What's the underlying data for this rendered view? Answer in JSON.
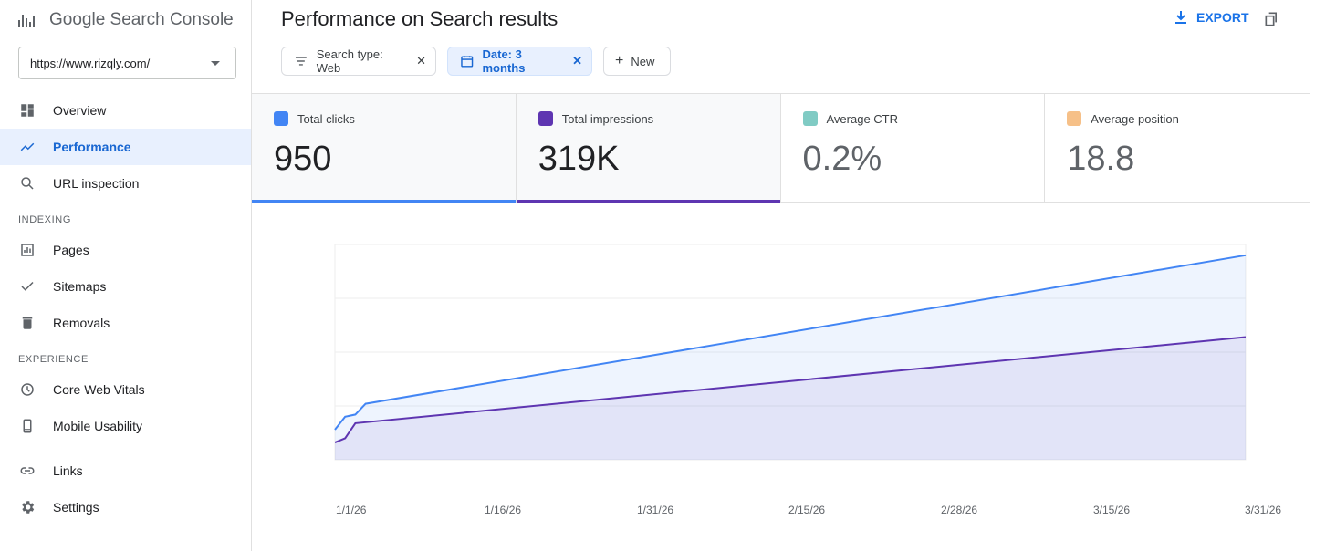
{
  "app": {
    "title": "Google Search Console"
  },
  "property": {
    "url": "https://www.rizqly.com/"
  },
  "sidebar": {
    "items": [
      {
        "label": "Overview",
        "icon": "dashboard-icon"
      },
      {
        "label": "Performance",
        "icon": "trending-up-icon",
        "active": true
      },
      {
        "label": "URL inspection",
        "icon": "search-icon"
      }
    ],
    "indexing_label": "INDEXING",
    "indexing": [
      {
        "label": "Pages",
        "icon": "pages-report-icon"
      },
      {
        "label": "Sitemaps",
        "icon": "checkmark-icon"
      },
      {
        "label": "Removals",
        "icon": "trash-icon"
      }
    ],
    "experience_label": "EXPERIENCE",
    "experience": [
      {
        "label": "Core Web Vitals",
        "icon": "clock-icon"
      },
      {
        "label": "Mobile Usability",
        "icon": "phone-icon"
      }
    ],
    "bottom": [
      {
        "label": "Links",
        "icon": "link-icon"
      },
      {
        "label": "Settings",
        "icon": "gear-icon"
      }
    ]
  },
  "header": {
    "title": "Performance on Search results",
    "export_label": "EXPORT"
  },
  "filters": {
    "search_type": "Search type: Web",
    "date": "Date: 3 months",
    "new": "New"
  },
  "metrics": [
    {
      "label": "Total clicks",
      "value": "950",
      "color": "#4285f4",
      "selected": true
    },
    {
      "label": "Total impressions",
      "value": "319K",
      "color": "#5e35b1",
      "selected": true
    },
    {
      "label": "Average CTR",
      "value": "0.2%",
      "color": "#80cbc4",
      "selected": false
    },
    {
      "label": "Average position",
      "value": "18.8",
      "color": "#f6c088",
      "selected": false
    }
  ],
  "chart_data": {
    "type": "area",
    "x_ticks": [
      "1/1/26",
      "1/16/26",
      "1/31/26",
      "2/15/26",
      "2/28/26",
      "3/15/26",
      "3/31/26"
    ],
    "grid": true,
    "series": [
      {
        "name": "Total clicks",
        "color": "#4285f4",
        "x": [
          0,
          1,
          2,
          3,
          89
        ],
        "y": [
          0.14,
          0.2,
          0.21,
          0.26,
          0.95
        ]
      },
      {
        "name": "Total impressions",
        "color": "#5e35b1",
        "x": [
          0,
          1,
          2,
          89
        ],
        "y": [
          0.08,
          0.1,
          0.17,
          0.57
        ]
      }
    ]
  }
}
